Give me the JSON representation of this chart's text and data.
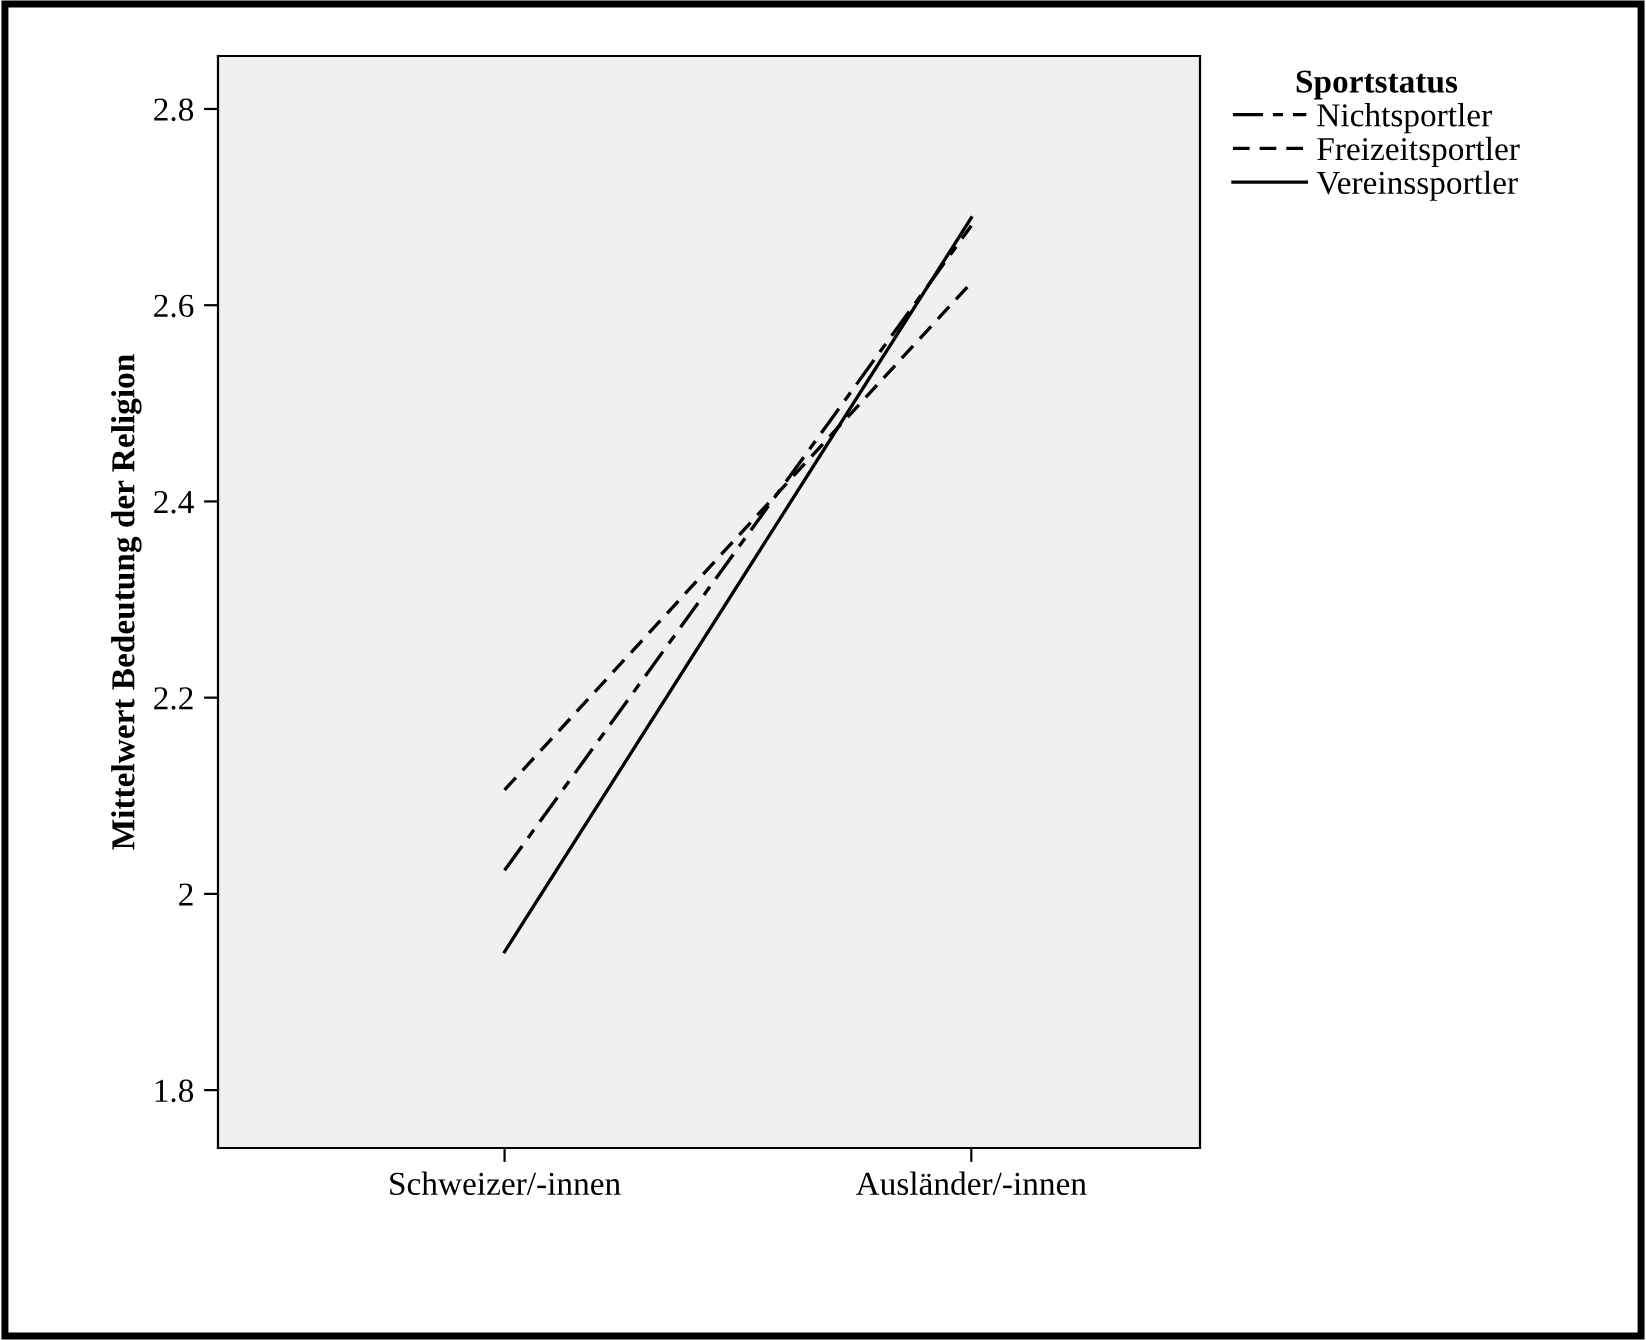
{
  "chart_data": {
    "type": "line",
    "ylabel": "Mittelwert Bedeutung der Religion",
    "legend_title": "Sportstatus",
    "categories": [
      "Schweizer/-innen",
      "Ausländer/-innen"
    ],
    "series": [
      {
        "name": "Nichtsportler",
        "color": "#000000",
        "line_style": "dashdot",
        "values": [
          2.024,
          2.681
        ]
      },
      {
        "name": "Freizeitsportler",
        "color": "#000000",
        "line_style": "dashed",
        "values": [
          2.106,
          2.623
        ]
      },
      {
        "name": "Vereinssportler",
        "color": "#000000",
        "line_style": "solid",
        "values": [
          1.941,
          2.689
        ]
      }
    ],
    "ylim": [
      1.741,
      2.854
    ],
    "yticks": [
      {
        "value": 1.8,
        "label": "1.8"
      },
      {
        "value": 2.0,
        "label": "2"
      },
      {
        "value": 2.2,
        "label": "2.2"
      },
      {
        "value": 2.4,
        "label": "2.4"
      },
      {
        "value": 2.6,
        "label": "2.6"
      },
      {
        "value": 2.8,
        "label": "2.8"
      }
    ],
    "grid": false,
    "legend": "top right",
    "marker": "none"
  }
}
